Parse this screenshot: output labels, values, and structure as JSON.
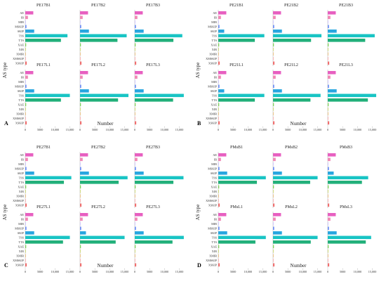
{
  "chart_data": {
    "type": "bar",
    "orientation": "horizontal",
    "ylabel": "AS type",
    "xlabel": "Number",
    "xlim": [
      0,
      17000
    ],
    "xticks": [
      0,
      5000,
      10000,
      15000
    ],
    "xtick_labels": [
      "0",
      "5000",
      "10,000",
      "15,000"
    ],
    "categories": [
      "AE",
      "IR",
      "MIR",
      "MSKIP",
      "SKIP",
      "TSS",
      "TTS",
      "XAE",
      "XIR",
      "XMIR",
      "XMSKIP",
      "XSKIP"
    ],
    "category_colors": [
      "#e75fc0",
      "#f08ab6",
      "#b6a7ff",
      "#6b8cf5",
      "#28a6e0",
      "#18c4c4",
      "#22b07a",
      "#7fd35a",
      "#b5c530",
      "#e0a040",
      "#f48a8a",
      "#f07070"
    ],
    "figures": [
      {
        "label": "A",
        "panels": [
          {
            "title": "PE17B1",
            "values": [
              2700,
              900,
              80,
              400,
              3000,
              14200,
              12000,
              300,
              30,
              20,
              80,
              500
            ]
          },
          {
            "title": "PE17B2",
            "values": [
              2700,
              900,
              80,
              400,
              3000,
              15700,
              12600,
              300,
              30,
              20,
              80,
              500
            ]
          },
          {
            "title": "PE17B3",
            "values": [
              2700,
              900,
              80,
              400,
              3000,
              16000,
              13000,
              300,
              30,
              20,
              80,
              500
            ]
          },
          {
            "title": "PE17L1",
            "values": [
              2700,
              900,
              80,
              400,
              3000,
              15000,
              12000,
              300,
              30,
              20,
              80,
              500
            ]
          },
          {
            "title": "PE17L2",
            "values": [
              2700,
              900,
              80,
              400,
              3000,
              16300,
              12800,
              300,
              30,
              20,
              80,
              500
            ]
          },
          {
            "title": "PE17L3",
            "values": [
              2700,
              900,
              80,
              400,
              3000,
              16500,
              12900,
              300,
              30,
              20,
              80,
              500
            ]
          }
        ]
      },
      {
        "label": "B",
        "panels": [
          {
            "title": "PE21B1",
            "values": [
              2700,
              900,
              80,
              400,
              2000,
              15500,
              12300,
              300,
              30,
              20,
              80,
              500
            ]
          },
          {
            "title": "PE21B2",
            "values": [
              2700,
              900,
              80,
              400,
              3000,
              16300,
              12800,
              300,
              30,
              20,
              80,
              500
            ]
          },
          {
            "title": "PE21B3",
            "values": [
              2700,
              900,
              80,
              400,
              3000,
              15800,
              12600,
              300,
              30,
              20,
              80,
              500
            ]
          },
          {
            "title": "PE21L1",
            "values": [
              2700,
              900,
              80,
              400,
              2000,
              15500,
              12300,
              300,
              30,
              20,
              80,
              500
            ]
          },
          {
            "title": "PE21L2",
            "values": [
              2700,
              900,
              80,
              400,
              3000,
              16000,
              12600,
              300,
              30,
              20,
              80,
              500
            ]
          },
          {
            "title": "PE21L3",
            "values": [
              2700,
              900,
              80,
              400,
              3000,
              16300,
              13500,
              300,
              30,
              20,
              80,
              500
            ]
          }
        ]
      },
      {
        "label": "C",
        "panels": [
          {
            "title": "PE27B1",
            "values": [
              2700,
              900,
              80,
              400,
              3000,
              15500,
              13000,
              300,
              30,
              20,
              80,
              500
            ]
          },
          {
            "title": "PE27B2",
            "values": [
              2700,
              900,
              80,
              400,
              3000,
              16000,
              13000,
              300,
              30,
              20,
              80,
              500
            ]
          },
          {
            "title": "PE27B3",
            "values": [
              2700,
              900,
              80,
              400,
              3000,
              16400,
              13000,
              300,
              30,
              20,
              80,
              500
            ]
          },
          {
            "title": "PE27L1",
            "values": [
              2700,
              900,
              80,
              400,
              3000,
              15000,
              12700,
              300,
              30,
              20,
              80,
              500
            ]
          },
          {
            "title": "PE27L2",
            "values": [
              2700,
              900,
              80,
              400,
              2000,
              15000,
              12000,
              300,
              30,
              20,
              80,
              500
            ]
          },
          {
            "title": "PE27L3",
            "values": [
              2700,
              900,
              80,
              400,
              3000,
              16500,
              12700,
              300,
              30,
              20,
              80,
              500
            ]
          }
        ]
      },
      {
        "label": "D",
        "panels": [
          {
            "title": "PMsB1",
            "values": [
              2700,
              900,
              80,
              400,
              3000,
              16000,
              13000,
              300,
              30,
              20,
              80,
              500
            ]
          },
          {
            "title": "PMsB2",
            "values": [
              2700,
              900,
              80,
              400,
              3000,
              15000,
              12500,
              300,
              30,
              20,
              80,
              500
            ]
          },
          {
            "title": "PMsB3",
            "values": [
              2700,
              900,
              80,
              400,
              2000,
              13600,
              11500,
              300,
              30,
              20,
              80,
              500
            ]
          },
          {
            "title": "PMsL1",
            "values": [
              2700,
              900,
              80,
              400,
              3000,
              16000,
              12500,
              300,
              30,
              20,
              80,
              500
            ]
          },
          {
            "title": "PMsL2",
            "values": [
              2700,
              900,
              80,
              400,
              3000,
              15000,
              12700,
              300,
              30,
              20,
              80,
              500
            ]
          },
          {
            "title": "PMsL3",
            "values": [
              2700,
              900,
              80,
              400,
              3000,
              14600,
              12800,
              300,
              30,
              20,
              80,
              500
            ]
          }
        ]
      }
    ]
  }
}
